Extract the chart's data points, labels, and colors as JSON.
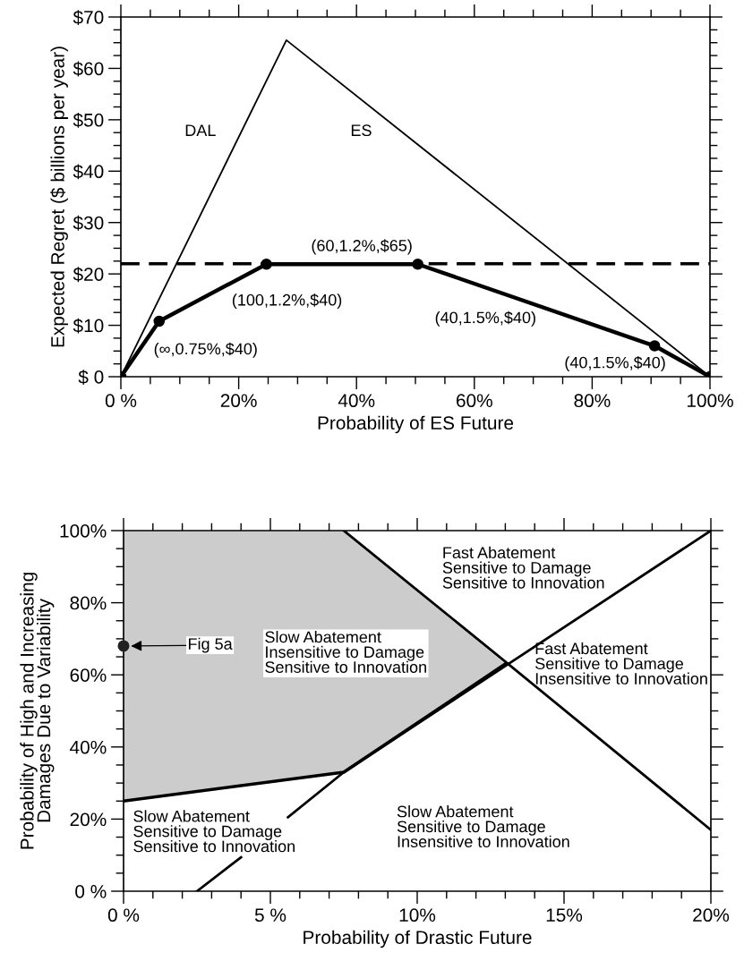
{
  "chart_data": [
    {
      "type": "line",
      "xlabel": "Probability of ES Future",
      "ylabel": "Expected Regret ($ billions per year)",
      "xlim": [
        0,
        100
      ],
      "ylim": [
        0,
        70
      ],
      "xticks": [
        {
          "value": 0,
          "label": "0 %"
        },
        {
          "value": 5,
          "label": null
        },
        {
          "value": 10,
          "label": null
        },
        {
          "value": 15,
          "label": null
        },
        {
          "value": 20,
          "label": "20%"
        },
        {
          "value": 25,
          "label": null
        },
        {
          "value": 30,
          "label": null
        },
        {
          "value": 35,
          "label": null
        },
        {
          "value": 40,
          "label": "40%"
        },
        {
          "value": 45,
          "label": null
        },
        {
          "value": 50,
          "label": null
        },
        {
          "value": 55,
          "label": null
        },
        {
          "value": 60,
          "label": "60%"
        },
        {
          "value": 65,
          "label": null
        },
        {
          "value": 70,
          "label": null
        },
        {
          "value": 75,
          "label": null
        },
        {
          "value": 80,
          "label": "80%"
        },
        {
          "value": 85,
          "label": null
        },
        {
          "value": 90,
          "label": null
        },
        {
          "value": 95,
          "label": null
        },
        {
          "value": 100,
          "label": "100%"
        }
      ],
      "yticks": [
        {
          "value": 0,
          "label": "$ 0"
        },
        {
          "value": 2.5,
          "label": null
        },
        {
          "value": 5,
          "label": null
        },
        {
          "value": 7.5,
          "label": null
        },
        {
          "value": 10,
          "label": "$10"
        },
        {
          "value": 12.5,
          "label": null
        },
        {
          "value": 15,
          "label": null
        },
        {
          "value": 17.5,
          "label": null
        },
        {
          "value": 20,
          "label": "$20"
        },
        {
          "value": 22.5,
          "label": null
        },
        {
          "value": 25,
          "label": null
        },
        {
          "value": 27.5,
          "label": null
        },
        {
          "value": 30,
          "label": "$30"
        },
        {
          "value": 32.5,
          "label": null
        },
        {
          "value": 35,
          "label": null
        },
        {
          "value": 37.5,
          "label": null
        },
        {
          "value": 40,
          "label": "$40"
        },
        {
          "value": 42.5,
          "label": null
        },
        {
          "value": 45,
          "label": null
        },
        {
          "value": 47.5,
          "label": null
        },
        {
          "value": 50,
          "label": "$50"
        },
        {
          "value": 52.5,
          "label": null
        },
        {
          "value": 55,
          "label": null
        },
        {
          "value": 57.5,
          "label": null
        },
        {
          "value": 60,
          "label": "$60"
        },
        {
          "value": 62.5,
          "label": null
        },
        {
          "value": 65,
          "label": null
        },
        {
          "value": 67.5,
          "label": null
        },
        {
          "value": 70,
          "label": "$70"
        }
      ],
      "series": [
        {
          "color": "#000000",
          "x": [
            0,
            28.1,
            100
          ],
          "values": [
            0,
            65.5,
            0
          ]
        },
        {
          "color": "#000000",
          "marker": "circle",
          "x": [
            0,
            6.5,
            24.7,
            50.4,
            90.6,
            100
          ],
          "values": [
            0,
            10.8,
            21.9,
            21.9,
            6.0,
            0
          ]
        }
      ],
      "ref_lines": [
        {
          "axis": "y",
          "value": 22,
          "color": "#000000",
          "line_style": "dashed"
        }
      ],
      "annotations": [
        "DAL",
        "ES",
        "(60,1.2%,$65)",
        "(100,1.2%,$40)",
        "(∞,0.75%,$40)",
        "(40,1.5%,$40)",
        "(40,1.5%,$40)"
      ],
      "grid": false,
      "legend": false
    },
    {
      "type": "line",
      "xlabel": "Probability of Drastic Future",
      "ylabel": "Probability of High and Increasing\nDamages Due to Variability",
      "xlim": [
        0,
        20
      ],
      "ylim": [
        0,
        100
      ],
      "xticks": [
        {
          "value": 0,
          "label": "0 %"
        },
        {
          "value": 1,
          "label": null
        },
        {
          "value": 2,
          "label": null
        },
        {
          "value": 3,
          "label": null
        },
        {
          "value": 4,
          "label": null
        },
        {
          "value": 5,
          "label": "5 %"
        },
        {
          "value": 6,
          "label": null
        },
        {
          "value": 7,
          "label": null
        },
        {
          "value": 8,
          "label": null
        },
        {
          "value": 9,
          "label": null
        },
        {
          "value": 10,
          "label": "10%"
        },
        {
          "value": 11,
          "label": null
        },
        {
          "value": 12,
          "label": null
        },
        {
          "value": 13,
          "label": null
        },
        {
          "value": 14,
          "label": null
        },
        {
          "value": 15,
          "label": "15%"
        },
        {
          "value": 16,
          "label": null
        },
        {
          "value": 17,
          "label": null
        },
        {
          "value": 18,
          "label": null
        },
        {
          "value": 19,
          "label": null
        },
        {
          "value": 20,
          "label": "20%"
        }
      ],
      "yticks": [
        {
          "value": 0,
          "label": "0 %"
        },
        {
          "value": 5,
          "label": null
        },
        {
          "value": 10,
          "label": null
        },
        {
          "value": 15,
          "label": null
        },
        {
          "value": 20,
          "label": "20%"
        },
        {
          "value": 25,
          "label": null
        },
        {
          "value": 30,
          "label": null
        },
        {
          "value": 35,
          "label": null
        },
        {
          "value": 40,
          "label": "40%"
        },
        {
          "value": 45,
          "label": null
        },
        {
          "value": 50,
          "label": null
        },
        {
          "value": 55,
          "label": null
        },
        {
          "value": 60,
          "label": "60%"
        },
        {
          "value": 65,
          "label": null
        },
        {
          "value": 70,
          "label": null
        },
        {
          "value": 75,
          "label": null
        },
        {
          "value": 80,
          "label": "80%"
        },
        {
          "value": 85,
          "label": null
        },
        {
          "value": 90,
          "label": null
        },
        {
          "value": 95,
          "label": null
        },
        {
          "value": 100,
          "label": "100%"
        }
      ],
      "series": [
        {
          "color": "#000000",
          "x": [
            0,
            7.5,
            13
          ],
          "values": [
            25,
            33,
            63
          ],
          "lower": [
            25,
            33,
            63
          ],
          "upper": [
            100,
            100,
            63
          ]
        },
        {
          "color": "#000000",
          "x": [
            7.5,
            13.1,
            20
          ],
          "values": [
            100,
            63,
            17
          ]
        },
        {
          "color": "#000000",
          "x": [
            2.5,
            4.0,
            4.8,
            5.6,
            7.5,
            13.1,
            20
          ],
          "values": [
            0,
            9.4,
            null,
            20.5,
            33,
            63,
            100
          ]
        },
        {
          "type": "scatter",
          "color": "#222222",
          "marker": "circle",
          "x": [
            0
          ],
          "values": [
            68
          ]
        }
      ],
      "annotations": [
        "Fig 5a",
        "Slow Abatement\nInsensitive to Damage\nSensitive to Innovation",
        "Fast Abatement\nSensitive to Damage\nSensitive to Innovation",
        "Fast Abatement\nSensitive to Damage\nInsensitive to Innovation",
        "Slow Abatement\nSensitive to Damage\nSensitive to Innovation",
        "Slow Abatement\nSensitive to Damage\nInsensitive to Innovation"
      ],
      "grid": false,
      "legend": false
    }
  ]
}
